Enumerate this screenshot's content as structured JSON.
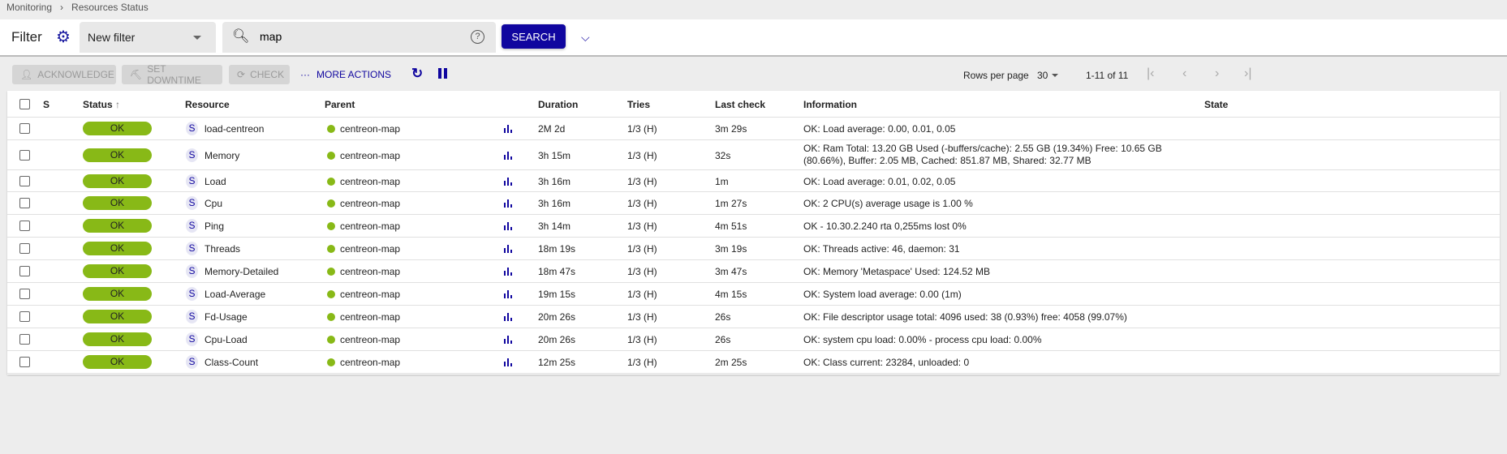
{
  "breadcrumb": [
    "Monitoring",
    "Resources Status"
  ],
  "filter": {
    "title": "Filter",
    "selected": "New filter",
    "search_value": "map",
    "search_button": "SEARCH"
  },
  "actions": {
    "acknowledge": "ACKNOWLEDGE",
    "set_downtime": "SET DOWNTIME",
    "check": "CHECK",
    "more": "MORE ACTIONS"
  },
  "pagination": {
    "rows_per_page_label": "Rows per page",
    "rows_per_page": "30",
    "range": "1-11 of 11"
  },
  "columns": {
    "s": "S",
    "status": "Status",
    "resource": "Resource",
    "parent": "Parent",
    "duration": "Duration",
    "tries": "Tries",
    "last_check": "Last check",
    "information": "Information",
    "state": "State"
  },
  "status_color": "#88b917",
  "accent": "#10069f",
  "rows": [
    {
      "status": "OK",
      "type": "S",
      "resource": "load-centreon",
      "parent": "centreon-map",
      "duration": "2M 2d",
      "tries": "1/3 (H)",
      "last_check": "3m 29s",
      "information": "OK: Load average: 0.00, 0.01, 0.05"
    },
    {
      "status": "OK",
      "type": "S",
      "resource": "Memory",
      "parent": "centreon-map",
      "duration": "3h 15m",
      "tries": "1/3 (H)",
      "last_check": "32s",
      "information": "OK: Ram Total: 13.20 GB Used (-buffers/cache): 2.55 GB (19.34%) Free: 10.65 GB (80.66%), Buffer: 2.05 MB, Cached: 851.87 MB, Shared: 32.77 MB"
    },
    {
      "status": "OK",
      "type": "S",
      "resource": "Load",
      "parent": "centreon-map",
      "duration": "3h 16m",
      "tries": "1/3 (H)",
      "last_check": "1m",
      "information": "OK: Load average: 0.01, 0.02, 0.05"
    },
    {
      "status": "OK",
      "type": "S",
      "resource": "Cpu",
      "parent": "centreon-map",
      "duration": "3h 16m",
      "tries": "1/3 (H)",
      "last_check": "1m 27s",
      "information": "OK: 2 CPU(s) average usage is 1.00 %"
    },
    {
      "status": "OK",
      "type": "S",
      "resource": "Ping",
      "parent": "centreon-map",
      "duration": "3h 14m",
      "tries": "1/3 (H)",
      "last_check": "4m 51s",
      "information": "OK - 10.30.2.240 rta 0,255ms lost 0%"
    },
    {
      "status": "OK",
      "type": "S",
      "resource": "Threads",
      "parent": "centreon-map",
      "duration": "18m 19s",
      "tries": "1/3 (H)",
      "last_check": "3m 19s",
      "information": "OK: Threads active: 46, daemon: 31"
    },
    {
      "status": "OK",
      "type": "S",
      "resource": "Memory-Detailed",
      "parent": "centreon-map",
      "duration": "18m 47s",
      "tries": "1/3 (H)",
      "last_check": "3m 47s",
      "information": "OK: Memory 'Metaspace' Used: 124.52 MB"
    },
    {
      "status": "OK",
      "type": "S",
      "resource": "Load-Average",
      "parent": "centreon-map",
      "duration": "19m 15s",
      "tries": "1/3 (H)",
      "last_check": "4m 15s",
      "information": "OK: System load average: 0.00 (1m)"
    },
    {
      "status": "OK",
      "type": "S",
      "resource": "Fd-Usage",
      "parent": "centreon-map",
      "duration": "20m 26s",
      "tries": "1/3 (H)",
      "last_check": "26s",
      "information": "OK: File descriptor usage total: 4096 used: 38 (0.93%) free: 4058 (99.07%)"
    },
    {
      "status": "OK",
      "type": "S",
      "resource": "Cpu-Load",
      "parent": "centreon-map",
      "duration": "20m 26s",
      "tries": "1/3 (H)",
      "last_check": "26s",
      "information": "OK: system cpu load: 0.00% - process cpu load: 0.00%"
    },
    {
      "status": "OK",
      "type": "S",
      "resource": "Class-Count",
      "parent": "centreon-map",
      "duration": "12m 25s",
      "tries": "1/3 (H)",
      "last_check": "2m 25s",
      "information": "OK: Class current: 23284, unloaded: 0"
    }
  ]
}
